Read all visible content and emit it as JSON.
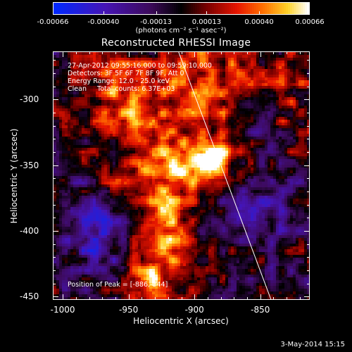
{
  "colorbar": {
    "tick_labels": [
      "-0.00066",
      "-0.00040",
      "-0.00013",
      "0.00013",
      "0.00040",
      "0.00066"
    ],
    "tick_values": [
      -0.00066,
      -0.0004,
      -0.00013,
      0.00013,
      0.0004,
      0.00066
    ],
    "range": [
      -0.00066,
      0.00066
    ],
    "colormap": "blue-purple-black-red-orange-yellow-white"
  },
  "units_label": "(photons cm⁻² s⁻¹ asec⁻²)",
  "title": "Reconstructed RHESSI Image",
  "info_lines": [
    "27-Apr-2012 09:55:16.000 to 09:59:10.000",
    "Detectors: 3F 5F 6F 7F 8F 9F, Att 0",
    "Energy Range: 12.0 - 25.0 keV",
    "Clean     Total counts: 6.37E+03"
  ],
  "peak_label": "Position of Peak = [-886,-344]",
  "footer_date": "3-May-2014 15:15",
  "chart_data": {
    "type": "heatmap",
    "title": "Reconstructed RHESSI Image",
    "xlabel": "Heliocentric X (arcsec)",
    "ylabel": "Heliocentric Y (arcsec)",
    "xlim": [
      -1007,
      -813
    ],
    "ylim": [
      -452,
      -264
    ],
    "x_tick_labels": [
      "-1000",
      "-950",
      "-900",
      "-850"
    ],
    "x_tick_values": [
      -1000,
      -950,
      -900,
      -850
    ],
    "y_tick_labels": [
      "-300",
      "-350",
      "-400",
      "-450"
    ],
    "y_tick_values": [
      -300,
      -350,
      -400,
      -450
    ],
    "peak": {
      "x": -886,
      "y": -344
    },
    "limb_line": {
      "x1": -912,
      "y1": -264,
      "x2": -842,
      "y2": -452
    }
  }
}
